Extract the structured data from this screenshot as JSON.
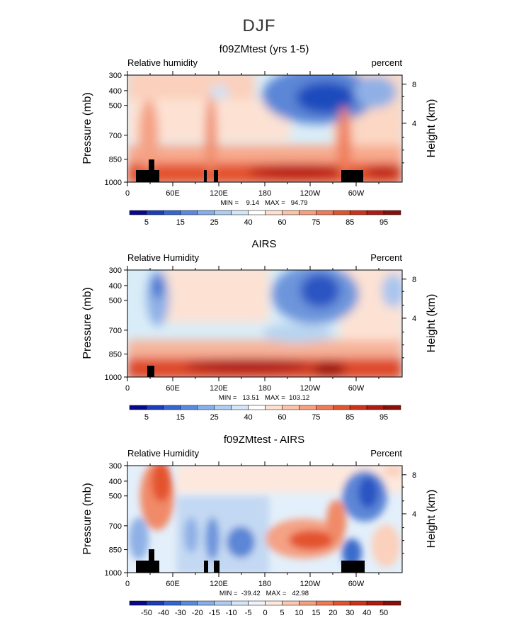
{
  "figure": {
    "title": "DJF"
  },
  "chart_data": [
    {
      "type": "heatmap",
      "title": "f09ZMtest (yrs 1-5)",
      "left_label": "Relative humidity",
      "right_label": "percent",
      "ylabel": "Pressure (mb)",
      "y2label": "Height (km)",
      "x_ticks": [
        "0",
        "60E",
        "120E",
        "180",
        "120W",
        "60W"
      ],
      "y_ticks": [
        "300",
        "400",
        "500",
        "700",
        "850",
        "1000"
      ],
      "y2_ticks": [
        "8",
        "4"
      ],
      "stats": {
        "min": "9.14",
        "max": "94.79"
      },
      "stats_text": "MIN =    9.14   MAX =   94.79",
      "colorbar_labels": [
        "5",
        "15",
        "25",
        "40",
        "60",
        "75",
        "85",
        "95"
      ]
    },
    {
      "type": "heatmap",
      "title": "AIRS",
      "left_label": "Relative Humidity",
      "right_label": "Percent",
      "ylabel": "Pressure (mb)",
      "y2label": "Height (km)",
      "x_ticks": [
        "0",
        "60E",
        "120E",
        "180",
        "120W",
        "60W"
      ],
      "y_ticks": [
        "300",
        "400",
        "500",
        "700",
        "850",
        "1000"
      ],
      "y2_ticks": [
        "8",
        "4"
      ],
      "stats": {
        "min": "13.51",
        "max": "103.12"
      },
      "stats_text": "MIN =   13.51   MAX =  103.12",
      "colorbar_labels": [
        "5",
        "15",
        "25",
        "40",
        "60",
        "75",
        "85",
        "95"
      ]
    },
    {
      "type": "heatmap",
      "title": "f09ZMtest - AIRS",
      "left_label": "Relative Humidity",
      "right_label": "Percent",
      "ylabel": "Pressure (mb)",
      "y2label": "Height (km)",
      "x_ticks": [
        "0",
        "60E",
        "120E",
        "180",
        "120W",
        "60W"
      ],
      "y_ticks": [
        "300",
        "400",
        "500",
        "700",
        "850",
        "1000"
      ],
      "y2_ticks": [
        "8",
        "4"
      ],
      "stats": {
        "min": "-39.42",
        "max": "42.98"
      },
      "stats_text": "MIN =  -39.42   MAX =   42.98",
      "colorbar_labels": [
        "-50",
        "-40",
        "-30",
        "-20",
        "-15",
        "-10",
        "-5",
        "0",
        "5",
        "10",
        "15",
        "20",
        "30",
        "40",
        "50"
      ]
    }
  ]
}
